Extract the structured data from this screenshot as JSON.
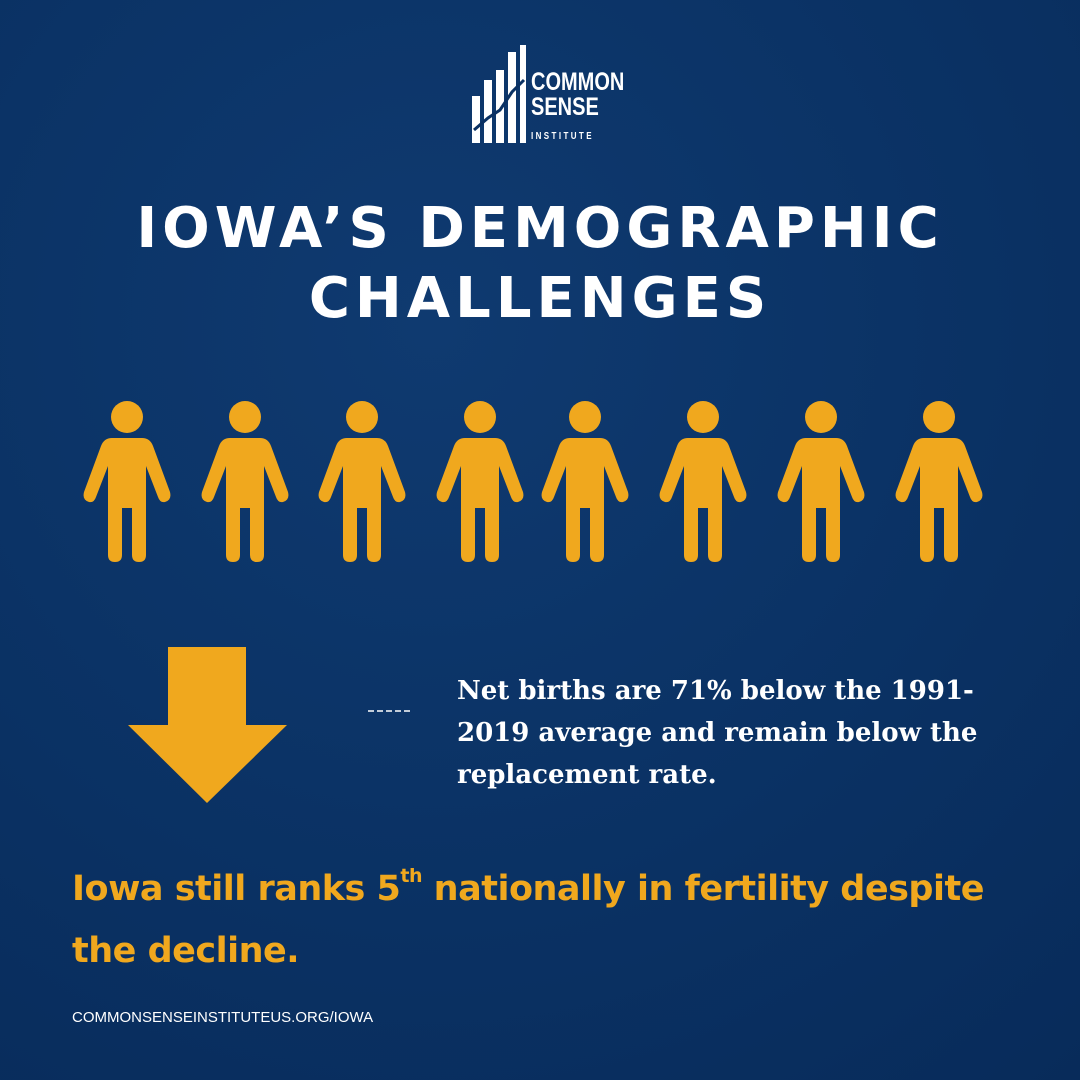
{
  "logo": {
    "line1": "COMMON",
    "line2": "SENSE",
    "line3": "INSTITUTE"
  },
  "title": {
    "line1": "IOWA’S DEMOGRAPHIC",
    "line2": "CHALLENGES"
  },
  "fact": "Net births are 71% below the 1991-2019 average and remain below the replacement rate.",
  "highlight": {
    "before": "Iowa still ranks 5",
    "superscript": "th",
    "after": " nationally in fertility despite the decline."
  },
  "footer": "COMMONSENSEINSTITUTEUS.ORG/IOWA"
}
